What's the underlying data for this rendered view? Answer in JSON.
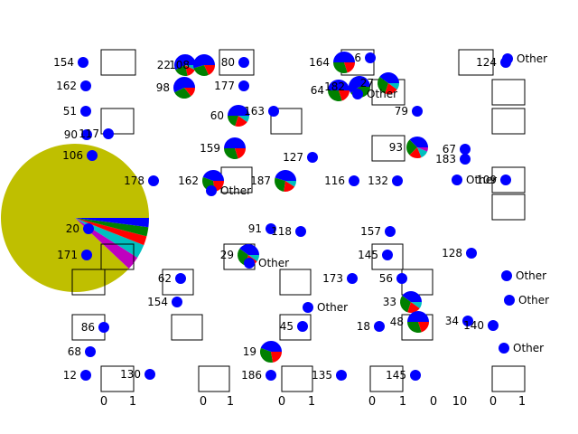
{
  "chart_data": {
    "type": "pie",
    "note_grid": "dense grid of tiny overlapping pie subplots with small empty axes",
    "colors": {
      "blue": "#0000ff",
      "green": "#008000",
      "red": "#ff0000",
      "cyan": "#00bfbf",
      "magenta": "#bf00bf",
      "olive": "#bfbf00",
      "black": "#000000"
    },
    "main_pie": {
      "slices": [
        {
          "name": "olive",
          "value": 88
        },
        {
          "name": "magenta",
          "value": 3
        },
        {
          "name": "cyan",
          "value": 3
        },
        {
          "name": "red",
          "value": 2
        },
        {
          "name": "green",
          "value": 2
        },
        {
          "name": "blue",
          "value": 2
        }
      ]
    },
    "mini_pies": [
      {
        "label": "154",
        "slices": [
          1
        ]
      },
      {
        "label": "22",
        "slices": [
          8,
          3,
          2,
          1
        ]
      },
      {
        "label": "108",
        "slices": [
          6,
          3,
          2
        ]
      },
      {
        "label": "80",
        "slices": [
          1
        ]
      },
      {
        "label": "164",
        "slices": [
          5,
          3,
          2
        ]
      },
      {
        "label": "6",
        "slices": [
          1
        ]
      },
      {
        "label": "124",
        "slices": [
          1
        ]
      },
      {
        "label": "162",
        "slices": [
          1
        ]
      },
      {
        "label": "98",
        "slices": [
          4,
          2,
          1
        ]
      },
      {
        "label": "177",
        "slices": [
          1
        ]
      },
      {
        "label": "64",
        "slices": [
          5,
          3,
          2
        ]
      },
      {
        "label": "182",
        "slices": [
          3,
          2
        ]
      },
      {
        "label": "27",
        "slices": [
          4,
          3,
          2,
          1
        ]
      },
      {
        "label": "51",
        "slices": [
          1
        ]
      },
      {
        "label": "60",
        "slices": [
          5,
          2,
          2,
          1
        ]
      },
      {
        "label": "163",
        "slices": [
          1
        ]
      },
      {
        "label": "79",
        "slices": [
          1
        ]
      },
      {
        "label": "90",
        "slices": [
          1
        ]
      },
      {
        "label": "117",
        "slices": [
          1
        ]
      },
      {
        "label": "159",
        "slices": [
          5,
          3,
          2
        ]
      },
      {
        "label": "93",
        "slices": [
          6,
          4,
          3,
          2,
          1
        ]
      },
      {
        "label": "67",
        "slices": [
          1
        ]
      },
      {
        "label": "106",
        "slices": [
          1
        ]
      },
      {
        "label": "127",
        "slices": [
          1
        ]
      },
      {
        "label": "183",
        "slices": [
          1
        ]
      },
      {
        "label": "178",
        "slices": [
          1
        ]
      },
      {
        "label": "162",
        "slices": [
          4,
          3,
          2
        ]
      },
      {
        "label": "187",
        "slices": [
          5,
          3,
          2,
          1
        ]
      },
      {
        "label": "116",
        "slices": [
          1
        ]
      },
      {
        "label": "132",
        "slices": [
          1
        ]
      },
      {
        "label": "109",
        "slices": [
          1
        ]
      },
      {
        "label": "20",
        "slices": [
          1
        ]
      },
      {
        "label": "91",
        "slices": [
          1
        ]
      },
      {
        "label": "118",
        "slices": [
          1
        ]
      },
      {
        "label": "157",
        "slices": [
          1
        ]
      },
      {
        "label": "171",
        "slices": [
          1
        ]
      },
      {
        "label": "29",
        "slices": [
          4,
          3,
          2,
          1
        ]
      },
      {
        "label": "145",
        "slices": [
          1
        ]
      },
      {
        "label": "128",
        "slices": [
          1
        ]
      },
      {
        "label": "62",
        "slices": [
          1
        ]
      },
      {
        "label": "173",
        "slices": [
          1
        ]
      },
      {
        "label": "56",
        "slices": [
          1
        ]
      },
      {
        "label": "154",
        "slices": [
          1
        ]
      },
      {
        "label": "33",
        "slices": [
          4,
          3,
          2,
          1
        ]
      },
      {
        "label": "86",
        "slices": [
          1
        ]
      },
      {
        "label": "18",
        "slices": [
          1
        ]
      },
      {
        "label": "45",
        "slices": [
          1
        ]
      },
      {
        "label": "48",
        "slices": [
          5,
          3,
          2
        ]
      },
      {
        "label": "34",
        "slices": [
          1
        ]
      },
      {
        "label": "140",
        "slices": [
          1
        ]
      },
      {
        "label": "68",
        "slices": [
          1
        ]
      },
      {
        "label": "19",
        "slices": [
          4,
          3,
          2
        ]
      },
      {
        "label": "12",
        "slices": [
          1
        ]
      },
      {
        "label": "130",
        "slices": [
          1
        ]
      },
      {
        "label": "186",
        "slices": [
          1
        ]
      },
      {
        "label": "135",
        "slices": [
          1
        ]
      },
      {
        "label": "145",
        "slices": [
          1
        ]
      }
    ],
    "legend_text": "Other",
    "tick_labels": [
      "0",
      "1",
      "10"
    ]
  }
}
